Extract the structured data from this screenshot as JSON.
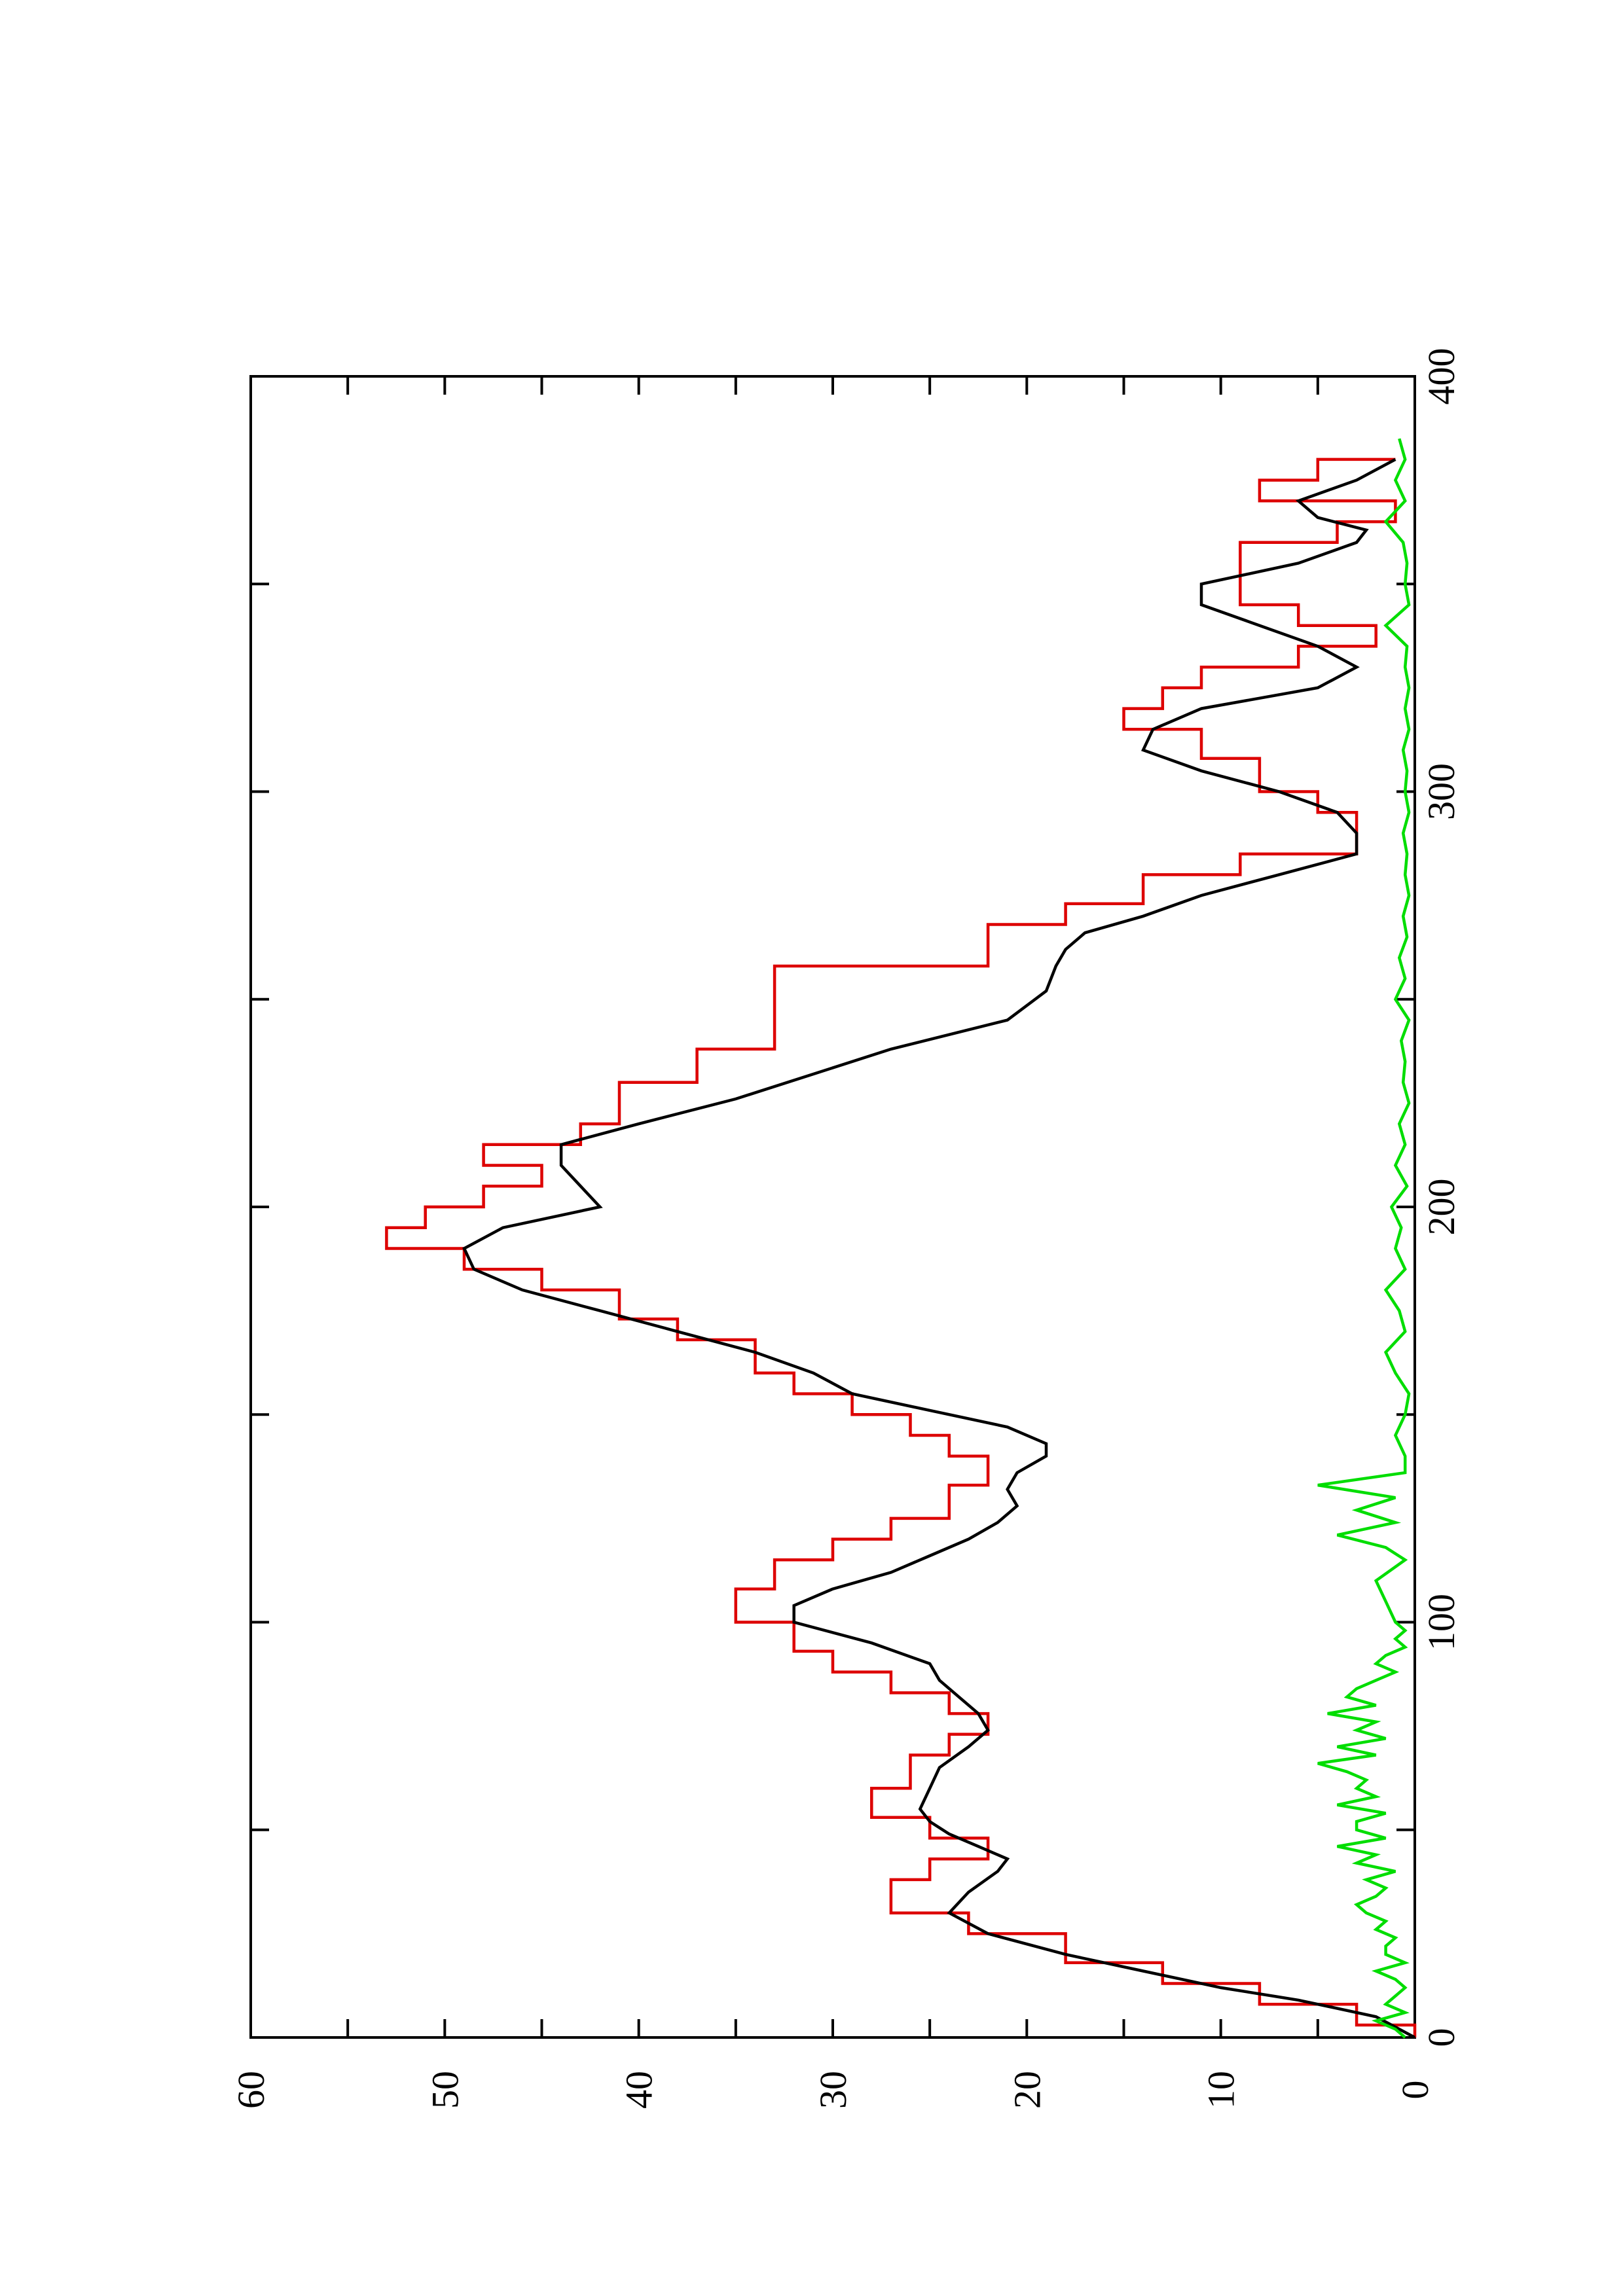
{
  "chart_data": {
    "type": "line",
    "title": "",
    "xlabel": "",
    "ylabel": "",
    "xlim": [
      0,
      400
    ],
    "ylim": [
      0,
      60
    ],
    "x_ticks": [
      0,
      100,
      200,
      300,
      400
    ],
    "x_tick_labels": [
      "0",
      "100",
      "200",
      "300",
      "400"
    ],
    "y_ticks": [
      0,
      10,
      20,
      30,
      40,
      50,
      60
    ],
    "y_tick_labels": [
      "0",
      "10",
      "20",
      "30",
      "40",
      "50",
      "60"
    ],
    "grid": false,
    "orientation": "rotated 90 degrees counter-clockwise",
    "series": [
      {
        "color": "#dd0000",
        "step": true,
        "x": [
          0,
          3,
          8,
          13,
          18,
          25,
          30,
          38,
          43,
          48,
          53,
          60,
          68,
          73,
          78,
          83,
          88,
          93,
          100,
          108,
          115,
          120,
          125,
          133,
          140,
          145,
          150,
          155,
          160,
          168,
          173,
          180,
          185,
          190,
          195,
          200,
          205,
          210,
          215,
          220,
          230,
          238,
          258,
          268,
          273,
          280,
          285,
          290,
          295,
          300,
          308,
          315,
          320,
          325,
          330,
          335,
          340,
          345,
          355,
          360,
          365,
          370,
          375,
          380
        ],
        "y": [
          0,
          3,
          8,
          13,
          18,
          23,
          27,
          25,
          22,
          25,
          28,
          26,
          24,
          22,
          24,
          27,
          30,
          32,
          35,
          33,
          30,
          27,
          24,
          22,
          24,
          26,
          29,
          32,
          34,
          38,
          41,
          45,
          49,
          53,
          51,
          48,
          45,
          48,
          43,
          41,
          37,
          33,
          22,
          18,
          14,
          9,
          3,
          3,
          5,
          8,
          11,
          15,
          13,
          11,
          6,
          2,
          6,
          9,
          9,
          4,
          1,
          8,
          5,
          1
        ]
      },
      {
        "color": "#000000",
        "step": false,
        "x": [
          0,
          5,
          9,
          12,
          16,
          20,
          25,
          30,
          35,
          40,
          43,
          46,
          49,
          52,
          55,
          60,
          65,
          70,
          74,
          78,
          82,
          86,
          90,
          95,
          100,
          104,
          108,
          112,
          116,
          120,
          124,
          128,
          132,
          136,
          140,
          143,
          147,
          151,
          155,
          160,
          165,
          170,
          175,
          180,
          185,
          190,
          195,
          200,
          205,
          210,
          215,
          220,
          226,
          232,
          238,
          245,
          252,
          258,
          262,
          266,
          270,
          275,
          280,
          285,
          290,
          295,
          300,
          305,
          310,
          315,
          320,
          325,
          330,
          335,
          340,
          345,
          350,
          355,
          360,
          363,
          366,
          370,
          375,
          380
        ],
        "y": [
          0,
          2,
          6,
          10,
          14,
          18,
          22,
          24,
          23,
          21.5,
          21,
          22.5,
          24,
          25,
          25.5,
          25,
          24.5,
          23,
          22,
          22.5,
          23.5,
          24.5,
          25,
          28,
          32,
          32,
          30,
          27,
          25,
          23,
          21.5,
          20.5,
          21,
          20.5,
          19,
          19,
          21,
          25,
          29,
          31,
          34,
          38,
          42,
          46,
          48.5,
          49,
          47,
          42,
          43,
          44,
          44,
          40,
          35,
          31,
          27,
          21,
          19,
          18.5,
          18,
          17,
          14,
          11,
          7,
          3,
          3,
          4,
          7,
          11,
          14,
          13.5,
          11,
          5,
          3,
          5,
          8,
          11,
          11,
          6,
          3,
          2.5,
          5,
          6,
          3,
          1
        ]
      },
      {
        "color": "#00dd00",
        "step": false,
        "x": [
          0,
          2,
          4,
          6,
          8,
          10,
          12,
          14,
          16,
          18,
          20,
          22,
          24,
          26,
          28,
          30,
          32,
          34,
          36,
          38,
          40,
          42,
          44,
          46,
          48,
          50,
          52,
          54,
          56,
          58,
          60,
          62,
          64,
          66,
          68,
          70,
          72,
          74,
          76,
          78,
          80,
          82,
          84,
          86,
          88,
          90,
          92,
          94,
          96,
          98,
          100,
          105,
          110,
          115,
          118,
          121,
          124,
          127,
          130,
          133,
          136,
          140,
          145,
          150,
          155,
          160,
          165,
          170,
          175,
          180,
          185,
          190,
          195,
          200,
          205,
          210,
          215,
          220,
          225,
          230,
          235,
          240,
          245,
          250,
          255,
          260,
          265,
          270,
          275,
          280,
          285,
          290,
          295,
          300,
          305,
          310,
          315,
          320,
          325,
          330,
          335,
          340,
          345,
          350,
          355,
          360,
          365,
          370,
          375,
          380,
          385
        ],
        "y": [
          0.5,
          1,
          2,
          0.5,
          1.5,
          1,
          0.5,
          1,
          2,
          0.5,
          1.5,
          1.5,
          1,
          2,
          1.5,
          2.5,
          3,
          2,
          1.5,
          2.5,
          1,
          3,
          2,
          4,
          1.5,
          3,
          3,
          1.5,
          4,
          2,
          3,
          2.5,
          3.5,
          5,
          2,
          4,
          1.5,
          3,
          2,
          4.5,
          2,
          3.5,
          3,
          2,
          1,
          2,
          1.5,
          0.5,
          1,
          0.5,
          1,
          1.5,
          2,
          0.5,
          1.5,
          4,
          1,
          3,
          1,
          5,
          0.5,
          0.5,
          1,
          0.5,
          0.3,
          1,
          1.5,
          0.5,
          0.8,
          1.5,
          0.5,
          1,
          0.7,
          1.2,
          0.4,
          1,
          0.5,
          0.8,
          0.3,
          0.6,
          0.5,
          0.7,
          0.3,
          1,
          0.5,
          0.8,
          0.4,
          0.6,
          0.3,
          0.5,
          0.4,
          0.6,
          0.3,
          0.5,
          0.4,
          0.6,
          0.3,
          0.5,
          0.3,
          0.5,
          0.4,
          1.5,
          0.3,
          0.5,
          0.4,
          0.6,
          1.5,
          0.5,
          1,
          0.5,
          0.8
        ]
      }
    ]
  }
}
